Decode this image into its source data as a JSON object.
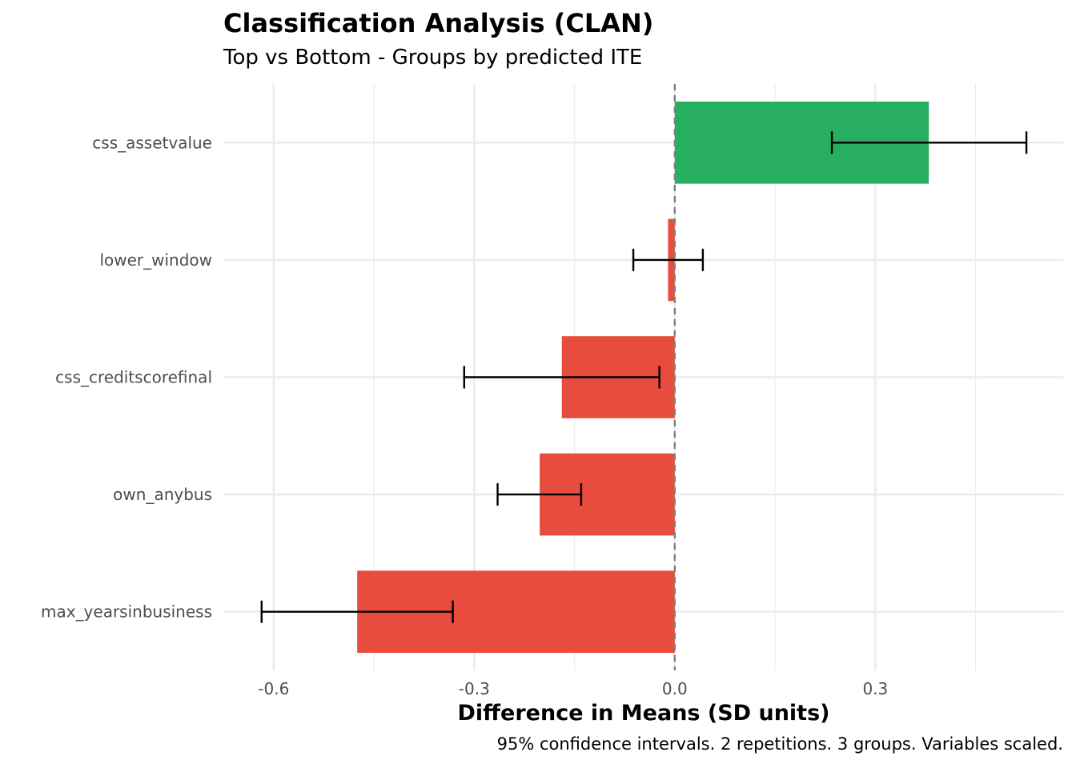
{
  "chart_data": {
    "type": "bar",
    "orientation": "horizontal",
    "title": "Classification Analysis (CLAN)",
    "subtitle": "Top vs Bottom - Groups by predicted ITE",
    "xlabel": "Difference in Means (SD units)",
    "ylabel": "",
    "caption": "95% confidence intervals. 2 repetitions. 3 groups. Variables scaled.",
    "xlim": [
      -0.674,
      0.581
    ],
    "xticks": [
      "-0.6",
      "-0.3",
      "0.0",
      "0.3"
    ],
    "xtick_values": [
      -0.6,
      -0.3,
      0.0,
      0.3
    ],
    "grid": true,
    "reference_line": 0,
    "colors": {
      "positive": "#27AE60",
      "negative": "#E74C3C"
    },
    "categories": [
      "css_assetvalue",
      "lower_window",
      "css_creditscorefinal",
      "own_anybus",
      "max_yearsinbusiness"
    ],
    "values": [
      0.38,
      -0.01,
      -0.169,
      -0.202,
      -0.475
    ],
    "ci_lower": [
      0.235,
      -0.062,
      -0.315,
      -0.265,
      -0.618
    ],
    "ci_upper": [
      0.526,
      0.042,
      -0.023,
      -0.14,
      -0.332
    ]
  }
}
